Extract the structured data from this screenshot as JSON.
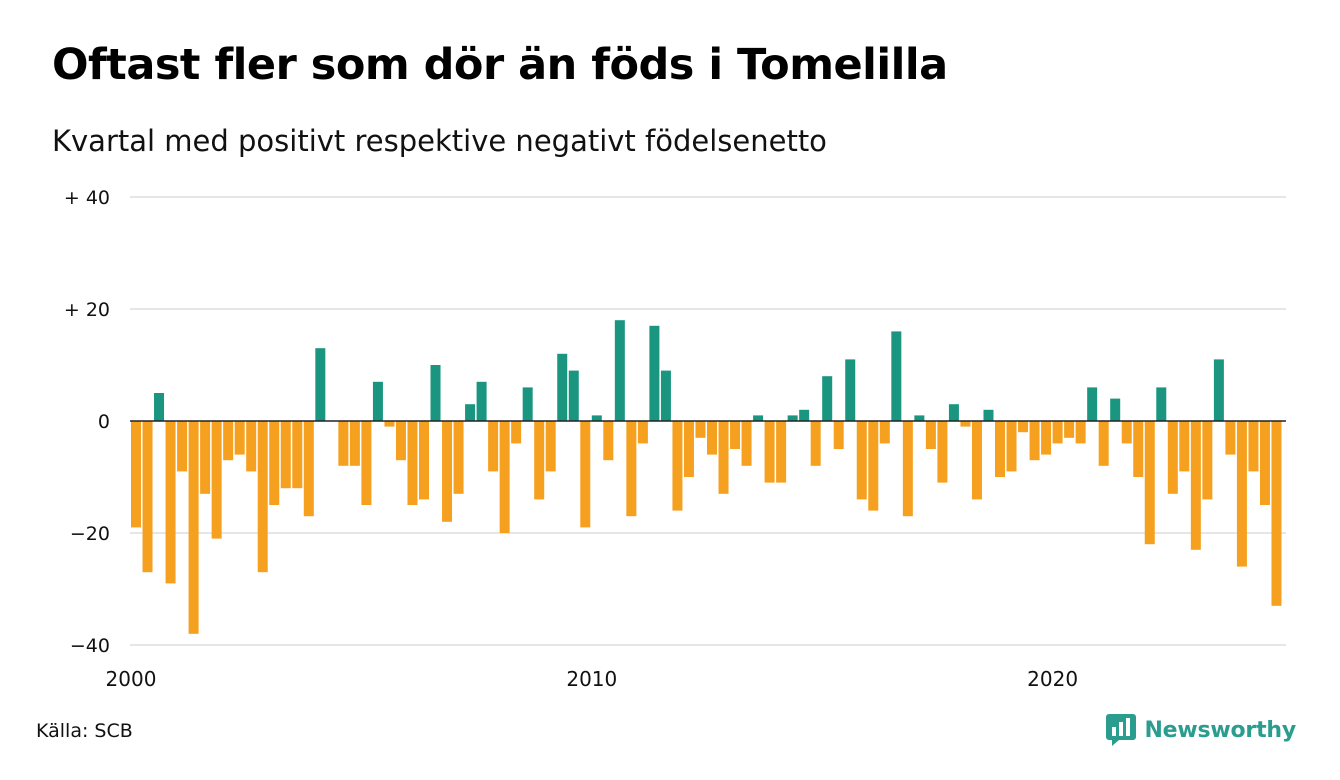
{
  "title": "Oftast fler som dör än föds i Tomelilla",
  "subtitle": "Kvartal med positivt respektive negativt födelsenetto",
  "source": "Källa: SCB",
  "brand": {
    "name": "Newsworthy",
    "color": "#2a9d8f",
    "icon": "newsworthy-logo-icon"
  },
  "colors": {
    "positive": "#1a9580",
    "negative": "#f5a01e",
    "grid": "#dddddd",
    "zero": "#222222"
  },
  "chart_data": {
    "type": "bar",
    "title": "Oftast fler som dör än föds i Tomelilla",
    "subtitle": "Kvartal med positivt respektive negativt födelsenetto",
    "xlabel": "",
    "ylabel": "",
    "x_ticks": [
      {
        "label": "2000",
        "index": 0
      },
      {
        "label": "2010",
        "index": 40
      },
      {
        "label": "2020",
        "index": 80
      }
    ],
    "y_ticks": [
      {
        "label": "+ 40",
        "value": 40
      },
      {
        "label": "+ 20",
        "value": 20
      },
      {
        "label": "0",
        "value": 0
      },
      {
        "label": "−20",
        "value": -20
      },
      {
        "label": "−40",
        "value": -40
      }
    ],
    "ylim": [
      -40,
      40
    ],
    "grid": true,
    "values": [
      -19,
      -27,
      5,
      -29,
      -9,
      -38,
      -13,
      -21,
      -7,
      -6,
      -9,
      -27,
      -15,
      -12,
      -12,
      -17,
      13,
      0,
      -8,
      -8,
      -15,
      7,
      -1,
      -7,
      -15,
      -14,
      10,
      -18,
      -13,
      3,
      7,
      -9,
      -20,
      -4,
      6,
      -14,
      -9,
      12,
      9,
      -19,
      1,
      -7,
      18,
      -17,
      -4,
      17,
      9,
      -16,
      -10,
      -3,
      -6,
      -13,
      -5,
      -8,
      1,
      -11,
      -11,
      1,
      2,
      -8,
      8,
      -5,
      11,
      -14,
      -16,
      -4,
      16,
      -17,
      1,
      -5,
      -11,
      3,
      -1,
      -14,
      2,
      -10,
      -9,
      -2,
      -7,
      -6,
      -4,
      -3,
      -4,
      6,
      -8,
      4,
      -4,
      -10,
      -22,
      6,
      -13,
      -9,
      -23,
      -14,
      11,
      -6,
      -26,
      -9,
      -15,
      -33
    ]
  }
}
